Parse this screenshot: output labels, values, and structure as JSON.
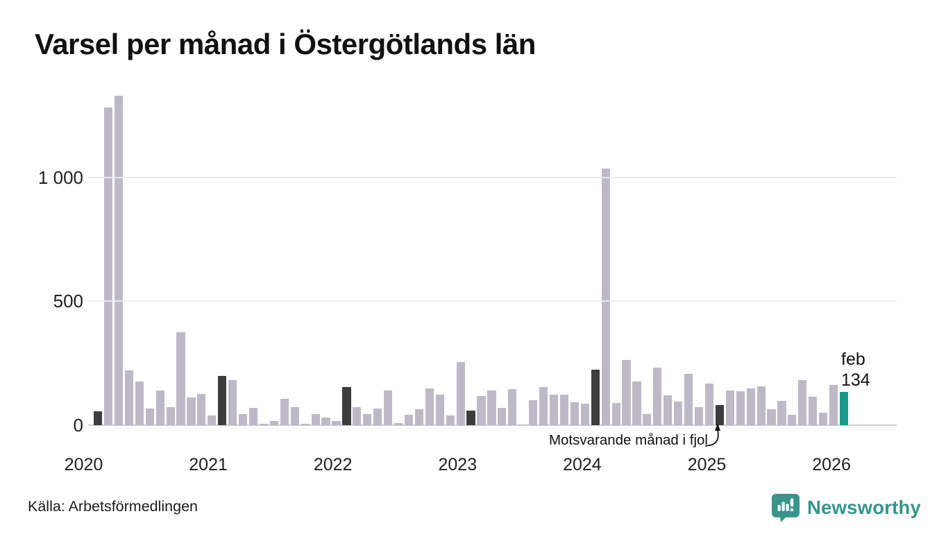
{
  "title": "Varsel per månad i Östergötlands län",
  "chart_data": {
    "type": "bar",
    "title": "Varsel per månad i Östergötlands län",
    "x": [
      "2020-02",
      "2020-03",
      "2020-04",
      "2020-05",
      "2020-06",
      "2020-07",
      "2020-08",
      "2020-09",
      "2020-10",
      "2020-11",
      "2020-12",
      "2021-01",
      "2021-02",
      "2021-03",
      "2021-04",
      "2021-05",
      "2021-06",
      "2021-07",
      "2021-08",
      "2021-09",
      "2021-10",
      "2021-11",
      "2021-12",
      "2022-01",
      "2022-02",
      "2022-03",
      "2022-04",
      "2022-05",
      "2022-06",
      "2022-07",
      "2022-08",
      "2022-09",
      "2022-10",
      "2022-11",
      "2022-12",
      "2023-01",
      "2023-02",
      "2023-03",
      "2023-04",
      "2023-05",
      "2023-06",
      "2023-07",
      "2023-08",
      "2023-09",
      "2023-10",
      "2023-11",
      "2023-12",
      "2024-01",
      "2024-02",
      "2024-03",
      "2024-04",
      "2024-05",
      "2024-06",
      "2024-07",
      "2024-08",
      "2024-09",
      "2024-10",
      "2024-11",
      "2024-12",
      "2025-01",
      "2025-02",
      "2025-03",
      "2025-04",
      "2025-05",
      "2025-06",
      "2025-07",
      "2025-08",
      "2025-09",
      "2025-10",
      "2025-11",
      "2025-12",
      "2026-01",
      "2026-02"
    ],
    "values": [
      57,
      1280,
      1330,
      220,
      175,
      67,
      139,
      74,
      375,
      112,
      125,
      40,
      198,
      183,
      46,
      71,
      5,
      18,
      106,
      74,
      6,
      45,
      31,
      18,
      153,
      74,
      46,
      66,
      141,
      8,
      43,
      64,
      148,
      124,
      39,
      255,
      60,
      117,
      140,
      71,
      146,
      3,
      100,
      155,
      124,
      124,
      92,
      86,
      224,
      1035,
      90,
      263,
      176,
      44,
      232,
      120,
      96,
      206,
      73,
      169,
      80,
      140,
      138,
      149,
      157,
      65,
      98,
      41,
      182,
      116,
      50,
      161,
      134
    ],
    "previous_february_indices": [
      0,
      12,
      24,
      36,
      48,
      60
    ],
    "current_index": 72,
    "current_month_label": "feb",
    "current_value_label": "134",
    "annotation": "Motsvarande månad i fjol",
    "y_ticks": [
      0,
      500,
      1000
    ],
    "y_tick_labels": [
      "0",
      "500",
      "1 000"
    ],
    "x_tick_labels": [
      "2020",
      "2021",
      "2022",
      "2023",
      "2024",
      "2025",
      "2026"
    ],
    "ylim": [
      0,
      1390
    ],
    "grid": true,
    "legend_position": "none",
    "colors": {
      "bar": "#bdb9c7",
      "february": "#3d3d3d",
      "current": "#1a9989",
      "gridline": "#ebebf0",
      "axis_line": "#cfcfd6"
    }
  },
  "footer": {
    "source": "Källa: Arbetsförmedlingen",
    "brand_name": "Newsworthy",
    "brand_color": "#38948c"
  }
}
